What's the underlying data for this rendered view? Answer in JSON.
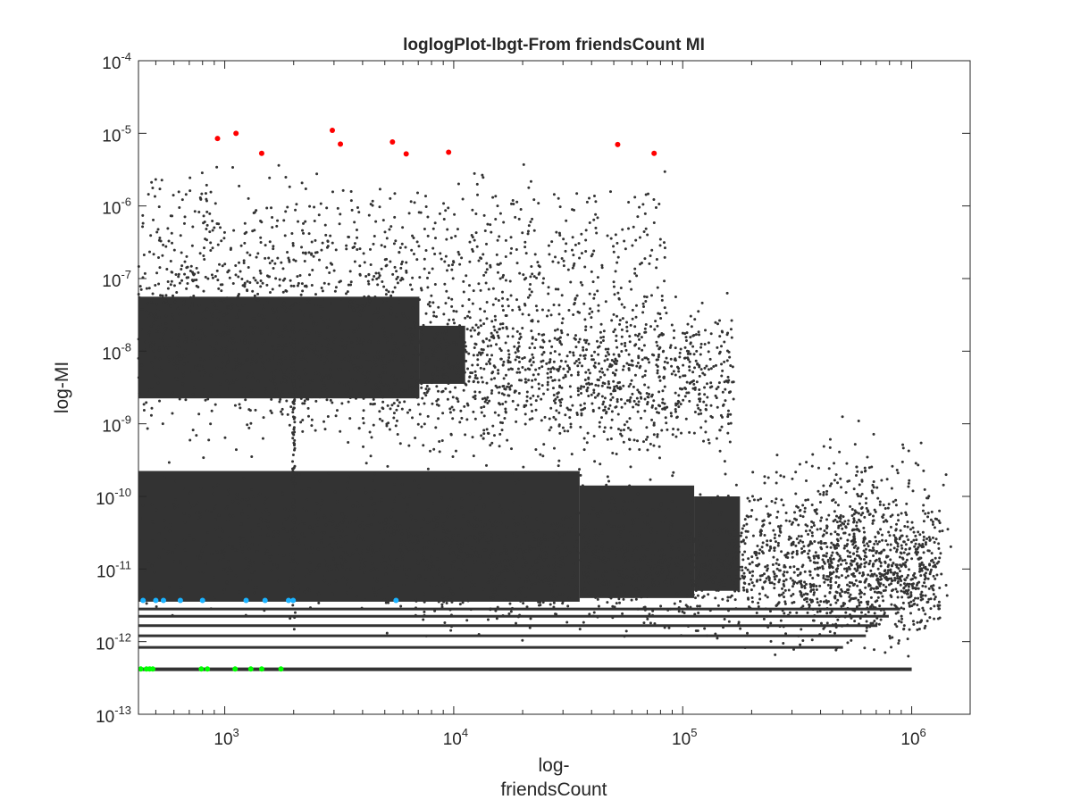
{
  "chart_data": {
    "type": "scatter",
    "title": "loglogPlot-lbgt-From friendsCount MI",
    "xlabel_lines": [
      "log-",
      "friendsCount"
    ],
    "ylabel": "log-MI",
    "x_scale": "log",
    "y_scale": "log",
    "xlim": [
      420,
      1800000
    ],
    "ylim": [
      1e-13,
      0.0001
    ],
    "x_ticks": [
      {
        "value": 1000,
        "base": "10",
        "exp": "3"
      },
      {
        "value": 10000,
        "base": "10",
        "exp": "4"
      },
      {
        "value": 100000,
        "base": "10",
        "exp": "5"
      },
      {
        "value": 1000000,
        "base": "10",
        "exp": "6"
      }
    ],
    "y_ticks": [
      {
        "value": 0.0001,
        "base": "10",
        "exp": "-4"
      },
      {
        "value": 1e-05,
        "base": "10",
        "exp": "-5"
      },
      {
        "value": 1e-06,
        "base": "10",
        "exp": "-6"
      },
      {
        "value": 1e-07,
        "base": "10",
        "exp": "-7"
      },
      {
        "value": 1e-08,
        "base": "10",
        "exp": "-8"
      },
      {
        "value": 1e-09,
        "base": "10",
        "exp": "-9"
      },
      {
        "value": 1e-10,
        "base": "10",
        "exp": "-10"
      },
      {
        "value": 1e-11,
        "base": "10",
        "exp": "-11"
      },
      {
        "value": 1e-12,
        "base": "10",
        "exp": "-12"
      },
      {
        "value": 1e-13,
        "base": "10",
        "exp": "-13"
      }
    ],
    "grid": false,
    "legend": "none",
    "colors": {
      "background_points": "#333333",
      "highlight_high": "#ff0000",
      "highlight_mid": "#1ab2ff",
      "highlight_low": "#00ff00",
      "axis": "#262626"
    },
    "series": [
      {
        "color": "#ff0000",
        "points": [
          [
            930,
            8.5e-06
          ],
          [
            1120,
            1e-05
          ],
          [
            1450,
            5.3e-06
          ],
          [
            2950,
            1.1e-05
          ],
          [
            3200,
            7.1e-06
          ],
          [
            5400,
            7.6e-06
          ],
          [
            6200,
            5.2e-06
          ],
          [
            9500,
            5.5e-06
          ],
          [
            52000,
            7e-06
          ],
          [
            75000,
            5.3e-06
          ]
        ]
      },
      {
        "color": "#1ab2ff",
        "points": [
          [
            440,
            3.7e-12
          ],
          [
            500,
            3.7e-12
          ],
          [
            540,
            3.7e-12
          ],
          [
            640,
            3.7e-12
          ],
          [
            800,
            3.7e-12
          ],
          [
            1240,
            3.7e-12
          ],
          [
            1500,
            3.7e-12
          ],
          [
            1900,
            3.7e-12
          ],
          [
            1990,
            3.7e-12
          ],
          [
            5600,
            3.7e-12
          ]
        ]
      },
      {
        "color": "#00ff00",
        "points": [
          [
            430,
            4.2e-13
          ],
          [
            455,
            4.2e-13
          ],
          [
            470,
            4.2e-13
          ],
          [
            485,
            4.2e-13
          ],
          [
            790,
            4.2e-13
          ],
          [
            840,
            4.2e-13
          ],
          [
            1110,
            4.2e-13
          ],
          [
            1300,
            4.2e-13
          ],
          [
            1450,
            4.2e-13
          ],
          [
            1760,
            4.2e-13
          ]
        ]
      }
    ]
  }
}
